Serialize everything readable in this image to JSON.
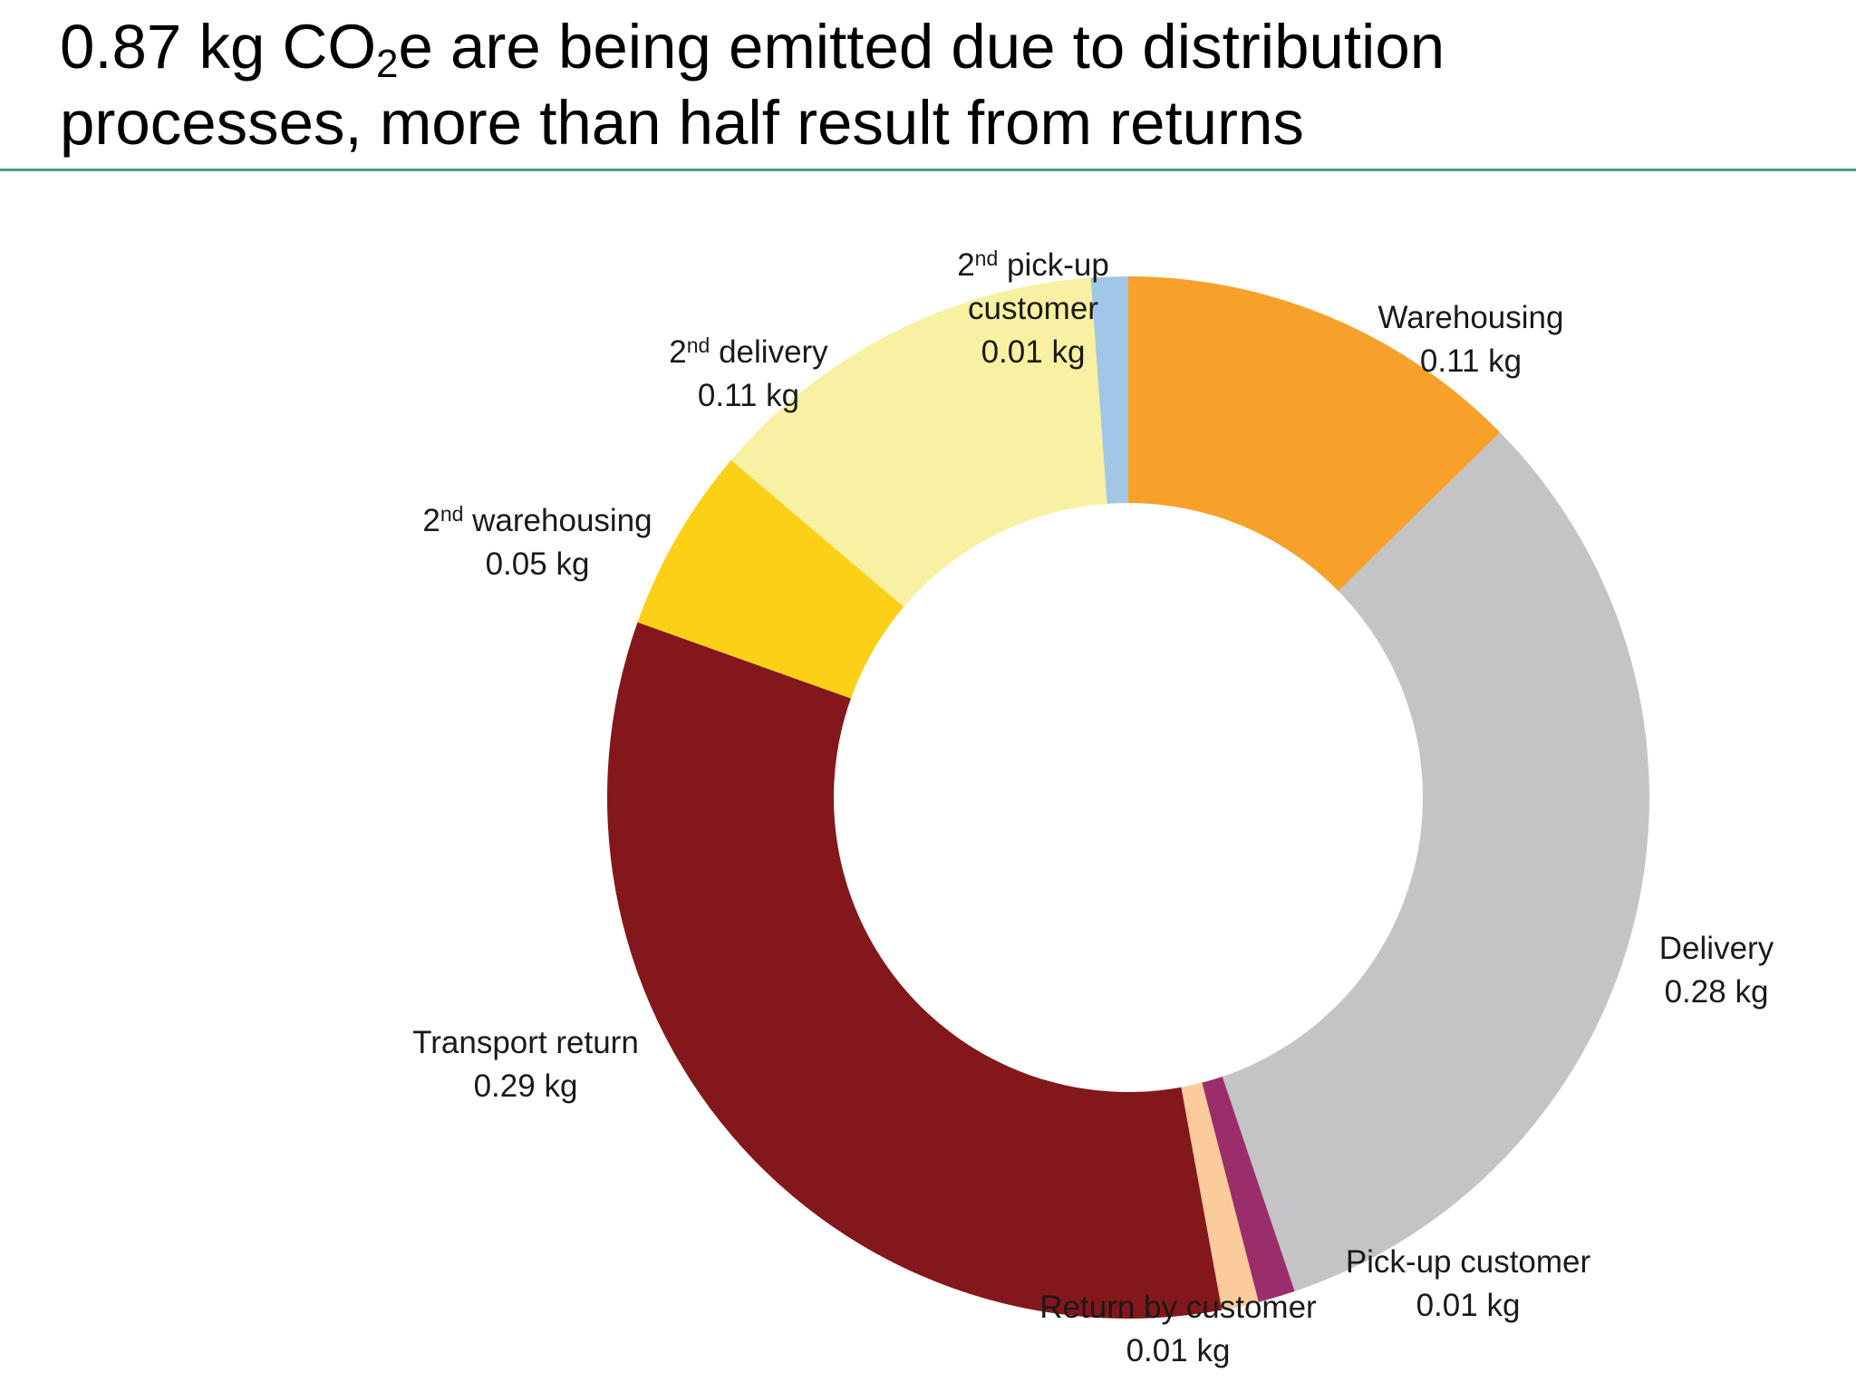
{
  "slide": {
    "title_part1": "0.87 kg CO",
    "title_sub": "2",
    "title_part2": "e are being emitted due to distribution",
    "title_line2": "processes, more than half result from returns",
    "rule_color": "#4a9a8a"
  },
  "chart_data": {
    "type": "pie",
    "variant": "donut",
    "title": "0.87 kg CO2e are being emitted due to distribution processes, more than half result from returns",
    "unit": "kg",
    "total": 0.87,
    "categories": [
      "Warehousing",
      "Delivery",
      "Pick-up customer",
      "Return by customer",
      "Transport return",
      "2nd warehousing",
      "2nd delivery",
      "2nd pick-up customer"
    ],
    "values": [
      0.11,
      0.28,
      0.01,
      0.01,
      0.29,
      0.05,
      0.11,
      0.01
    ],
    "slices": [
      {
        "label": "Warehousing",
        "value": 0.11,
        "value_text": "0.11 kg",
        "color": "#f7a12a"
      },
      {
        "label": "Delivery",
        "value": 0.28,
        "value_text": "0.28 kg",
        "color": "#c4c3c5"
      },
      {
        "label": "Pick-up customer",
        "value": 0.01,
        "value_text": "0.01 kg",
        "color": "#9a2e6a"
      },
      {
        "label": "Return by customer",
        "value": 0.01,
        "value_text": "0.01 kg",
        "color": "#fbcb9b"
      },
      {
        "label": "Transport return",
        "value": 0.29,
        "value_text": "0.29 kg",
        "color": "#84171c"
      },
      {
        "label": "2nd warehousing",
        "ordinal": "2",
        "ordinal_sup": "nd",
        "rest": " warehousing",
        "value": 0.05,
        "value_text": "0.05 kg",
        "color": "#fbd016"
      },
      {
        "label": "2nd delivery",
        "ordinal": "2",
        "ordinal_sup": "nd",
        "rest": " delivery",
        "value": 0.11,
        "value_text": "0.11 kg",
        "color": "#f8f1a1"
      },
      {
        "label": "2nd pick-up customer",
        "ordinal": "2",
        "ordinal_sup": "nd",
        "rest": " pick-up",
        "rest_line2": "customer",
        "value": 0.01,
        "value_text": "0.01 kg",
        "color": "#a2c6e6"
      }
    ]
  }
}
